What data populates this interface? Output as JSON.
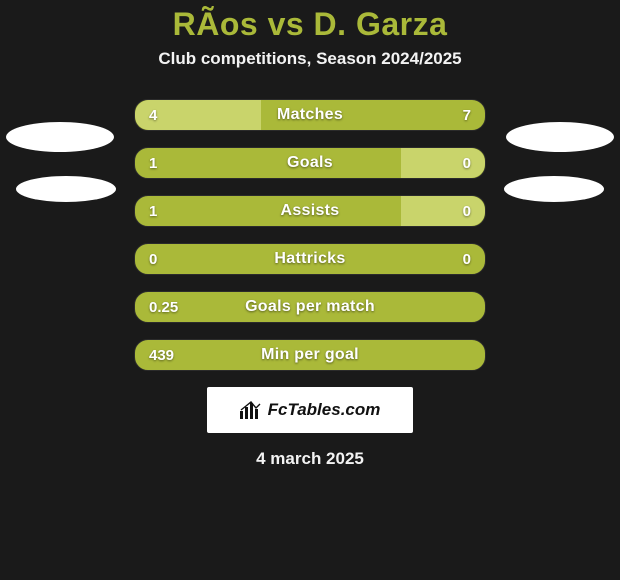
{
  "title": "RÃ­os vs D. Garza",
  "subtitle": "Club competitions, Season 2024/2025",
  "date_text": "4 march 2025",
  "brand_text": "FcTables.com",
  "colors": {
    "page_bg": "#1a1a1a",
    "title": "#aab939",
    "text": "#ffffff",
    "bar_bg": "#aab939",
    "bar_fill": "#c9d46b",
    "brand_bg": "#ffffff",
    "brand_text": "#111111"
  },
  "bars": [
    {
      "label": "Matches",
      "left": "4",
      "right": "7",
      "left_pct": 36,
      "right_pct": 0
    },
    {
      "label": "Goals",
      "left": "1",
      "right": "0",
      "left_pct": 0,
      "right_pct": 24
    },
    {
      "label": "Assists",
      "left": "1",
      "right": "0",
      "left_pct": 0,
      "right_pct": 24
    },
    {
      "label": "Hattricks",
      "left": "0",
      "right": "0",
      "left_pct": 0,
      "right_pct": 0
    },
    {
      "label": "Goals per match",
      "left": "0.25",
      "right": "",
      "left_pct": 0,
      "right_pct": 0
    },
    {
      "label": "Min per goal",
      "left": "439",
      "right": "",
      "left_pct": 0,
      "right_pct": 0
    }
  ]
}
